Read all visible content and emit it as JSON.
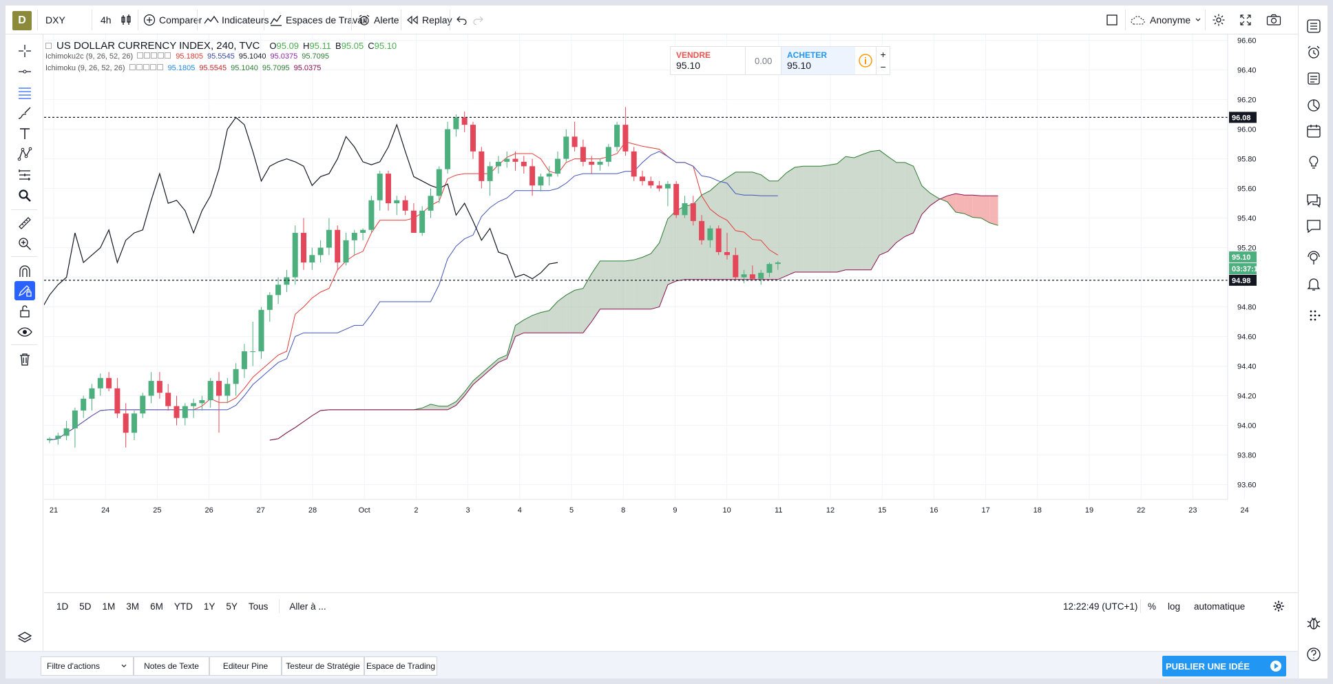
{
  "toolbar": {
    "logo_letter": "D",
    "symbol": "DXY",
    "interval": "4h",
    "compare": "Comparer",
    "indicators": "Indicateurs",
    "workspaces": "Espaces de Travail",
    "alert": "Alerte",
    "replay": "Replay",
    "account": "Anonyme"
  },
  "legend": {
    "title": "US DOLLAR CURRENCY INDEX, 240, TVC",
    "ohlc": [
      {
        "k": "O",
        "v": "95.09"
      },
      {
        "k": "H",
        "v": "95.11"
      },
      {
        "k": "B",
        "v": "95.05"
      },
      {
        "k": "C",
        "v": "95.10"
      }
    ],
    "indicators": [
      {
        "name": "Ichimoku2c (9, 26, 52, 26)",
        "values": [
          {
            "v": "95.1805",
            "color": "#e53935"
          },
          {
            "v": "95.5545",
            "color": "#3949ab"
          },
          {
            "v": "95.1040",
            "color": "#131722"
          },
          {
            "v": "95.0375",
            "color": "#8e24aa"
          },
          {
            "v": "95.7095",
            "color": "#2e7d32"
          }
        ]
      },
      {
        "name": "Ichimoku (9, 26, 52, 26)",
        "values": [
          {
            "v": "95.1805",
            "color": "#1e88e5"
          },
          {
            "v": "95.5545",
            "color": "#c62828"
          },
          {
            "v": "95.1040",
            "color": "#2e7d32"
          },
          {
            "v": "95.7095",
            "color": "#2e7d32"
          },
          {
            "v": "95.0375",
            "color": "#880e4f"
          }
        ]
      }
    ]
  },
  "trade": {
    "sell_label": "VENDRE",
    "sell_price": "95.10",
    "spread": "0.00",
    "buy_label": "ACHETER",
    "buy_price": "95.10"
  },
  "bottom": {
    "ranges": [
      "1D",
      "5D",
      "1M",
      "3M",
      "6M",
      "YTD",
      "1Y",
      "5Y",
      "Tous"
    ],
    "goto": "Aller à ...",
    "clock": "12:22:49 (UTC+1)",
    "percent": "%",
    "log": "log",
    "auto": "automatique"
  },
  "footer": {
    "tabs": [
      "Filtre d'actions",
      "Notes de Texte",
      "Editeur Pine",
      "Testeur de Stratégie",
      "Espace de Trading"
    ],
    "publish": "PUBLIER UNE IDÉE"
  },
  "colors": {
    "up": "#4caf7d",
    "down": "#e5475a",
    "accent": "#2962ff",
    "cloud_red": "#f4a3a3",
    "cloud_green": "#a5bca5"
  },
  "chart_data": {
    "type": "candlestick",
    "symbol": "DXY",
    "timeframe": "240",
    "y_range": [
      93.5,
      96.64
    ],
    "y_ticks": [
      "96.60",
      "96.40",
      "96.20",
      "96.00",
      "95.80",
      "95.60",
      "95.40",
      "95.20",
      "95.00",
      "94.80",
      "94.60",
      "94.40",
      "94.20",
      "94.00",
      "93.80",
      "93.60"
    ],
    "x_ticks": [
      "21",
      "24",
      "25",
      "26",
      "27",
      "28",
      "Oct",
      "2",
      "3",
      "4",
      "5",
      "8",
      "9",
      "10",
      "11",
      "12",
      "15",
      "16",
      "17",
      "18",
      "19",
      "22",
      "23",
      "24"
    ],
    "price_labels": [
      {
        "value": "96.08",
        "type": "hline"
      },
      {
        "value": "94.98",
        "type": "hline"
      },
      {
        "value": "95.10",
        "type": "last"
      },
      {
        "value": "03:37:1",
        "type": "countdown"
      }
    ],
    "candles": [
      [
        93.9,
        93.92,
        93.88,
        93.91
      ],
      [
        93.91,
        93.95,
        93.87,
        93.93
      ],
      [
        93.93,
        94.03,
        93.9,
        93.98
      ],
      [
        93.98,
        94.12,
        93.85,
        94.1
      ],
      [
        94.1,
        94.2,
        94.05,
        94.18
      ],
      [
        94.18,
        94.28,
        94.1,
        94.25
      ],
      [
        94.25,
        94.35,
        94.2,
        94.32
      ],
      [
        94.32,
        94.36,
        94.23,
        94.25
      ],
      [
        94.25,
        94.32,
        94.05,
        94.08
      ],
      [
        94.08,
        94.15,
        93.85,
        93.95
      ],
      [
        93.95,
        94.1,
        93.9,
        94.08
      ],
      [
        94.08,
        94.22,
        94.05,
        94.2
      ],
      [
        94.2,
        94.36,
        94.15,
        94.3
      ],
      [
        94.3,
        94.36,
        94.18,
        94.22
      ],
      [
        94.22,
        94.28,
        94.1,
        94.13
      ],
      [
        94.13,
        94.2,
        94.0,
        94.05
      ],
      [
        94.05,
        94.15,
        94.0,
        94.13
      ],
      [
        94.13,
        94.18,
        94.05,
        94.15
      ],
      [
        94.15,
        94.2,
        94.1,
        94.17
      ],
      [
        94.17,
        94.32,
        94.12,
        94.3
      ],
      [
        94.3,
        94.36,
        93.95,
        94.2
      ],
      [
        94.2,
        94.32,
        94.15,
        94.28
      ],
      [
        94.28,
        94.42,
        94.2,
        94.38
      ],
      [
        94.38,
        94.55,
        94.32,
        94.5
      ],
      [
        94.5,
        94.7,
        94.4,
        94.5
      ],
      [
        94.5,
        94.8,
        94.45,
        94.78
      ],
      [
        94.78,
        94.9,
        94.7,
        94.88
      ],
      [
        94.88,
        95.0,
        94.82,
        94.95
      ],
      [
        94.95,
        95.05,
        94.9,
        95.0
      ],
      [
        95.0,
        95.35,
        94.95,
        95.3
      ],
      [
        95.3,
        95.4,
        95.05,
        95.1
      ],
      [
        95.1,
        95.2,
        95.05,
        95.15
      ],
      [
        95.15,
        95.25,
        95.1,
        95.2
      ],
      [
        95.2,
        95.4,
        95.15,
        95.32
      ],
      [
        95.32,
        95.35,
        95.05,
        95.1
      ],
      [
        95.1,
        95.3,
        95.08,
        95.25
      ],
      [
        95.25,
        95.32,
        95.15,
        95.3
      ],
      [
        95.3,
        95.33,
        95.25,
        95.32
      ],
      [
        95.32,
        95.55,
        95.3,
        95.52
      ],
      [
        95.52,
        95.72,
        95.45,
        95.7
      ],
      [
        95.7,
        95.72,
        95.45,
        95.5
      ],
      [
        95.5,
        95.55,
        95.42,
        95.52
      ],
      [
        95.52,
        95.55,
        95.42,
        95.45
      ],
      [
        95.45,
        95.5,
        95.3,
        95.3
      ],
      [
        95.3,
        95.48,
        95.28,
        95.45
      ],
      [
        95.45,
        95.6,
        95.4,
        95.55
      ],
      [
        95.55,
        95.75,
        95.5,
        95.73
      ],
      [
        95.73,
        96.05,
        95.7,
        96.0
      ],
      [
        96.0,
        96.1,
        95.95,
        96.08
      ],
      [
        96.08,
        96.12,
        95.98,
        96.03
      ],
      [
        96.03,
        96.05,
        95.8,
        95.85
      ],
      [
        95.85,
        95.88,
        95.6,
        95.65
      ],
      [
        95.65,
        95.78,
        95.55,
        95.75
      ],
      [
        95.75,
        95.82,
        95.7,
        95.78
      ],
      [
        95.78,
        95.85,
        95.74,
        95.8
      ],
      [
        95.8,
        95.85,
        95.72,
        95.78
      ],
      [
        95.78,
        95.82,
        95.7,
        95.75
      ],
      [
        95.75,
        95.8,
        95.55,
        95.62
      ],
      [
        95.62,
        95.7,
        95.58,
        95.68
      ],
      [
        95.68,
        95.75,
        95.62,
        95.7
      ],
      [
        95.7,
        95.85,
        95.68,
        95.8
      ],
      [
        95.8,
        96.0,
        95.78,
        95.95
      ],
      [
        95.95,
        96.05,
        95.85,
        95.88
      ],
      [
        95.88,
        95.93,
        95.75,
        95.78
      ],
      [
        95.78,
        95.82,
        95.7,
        95.76
      ],
      [
        95.76,
        95.8,
        95.72,
        95.78
      ],
      [
        95.78,
        95.9,
        95.75,
        95.88
      ],
      [
        95.88,
        96.05,
        95.85,
        96.03
      ],
      [
        96.03,
        96.15,
        95.82,
        95.85
      ],
      [
        95.85,
        95.88,
        95.65,
        95.68
      ],
      [
        95.68,
        95.72,
        95.62,
        95.65
      ],
      [
        95.65,
        95.68,
        95.6,
        95.62
      ],
      [
        95.62,
        95.65,
        95.58,
        95.6
      ],
      [
        95.6,
        95.65,
        95.48,
        95.63
      ],
      [
        95.63,
        95.65,
        95.4,
        95.42
      ],
      [
        95.42,
        95.55,
        95.4,
        95.5
      ],
      [
        95.5,
        95.55,
        95.35,
        95.38
      ],
      [
        95.38,
        95.42,
        95.22,
        95.25
      ],
      [
        95.25,
        95.35,
        95.2,
        95.33
      ],
      [
        95.33,
        95.35,
        95.15,
        95.17
      ],
      [
        95.17,
        95.3,
        95.12,
        95.15
      ],
      [
        95.15,
        95.2,
        94.98,
        95.0
      ],
      [
        95.0,
        95.05,
        94.96,
        95.02
      ],
      [
        95.02,
        95.08,
        94.98,
        94.99
      ],
      [
        94.99,
        95.05,
        94.95,
        95.03
      ],
      [
        95.03,
        95.1,
        95.0,
        95.09
      ],
      [
        95.09,
        95.11,
        95.05,
        95.1
      ]
    ]
  }
}
